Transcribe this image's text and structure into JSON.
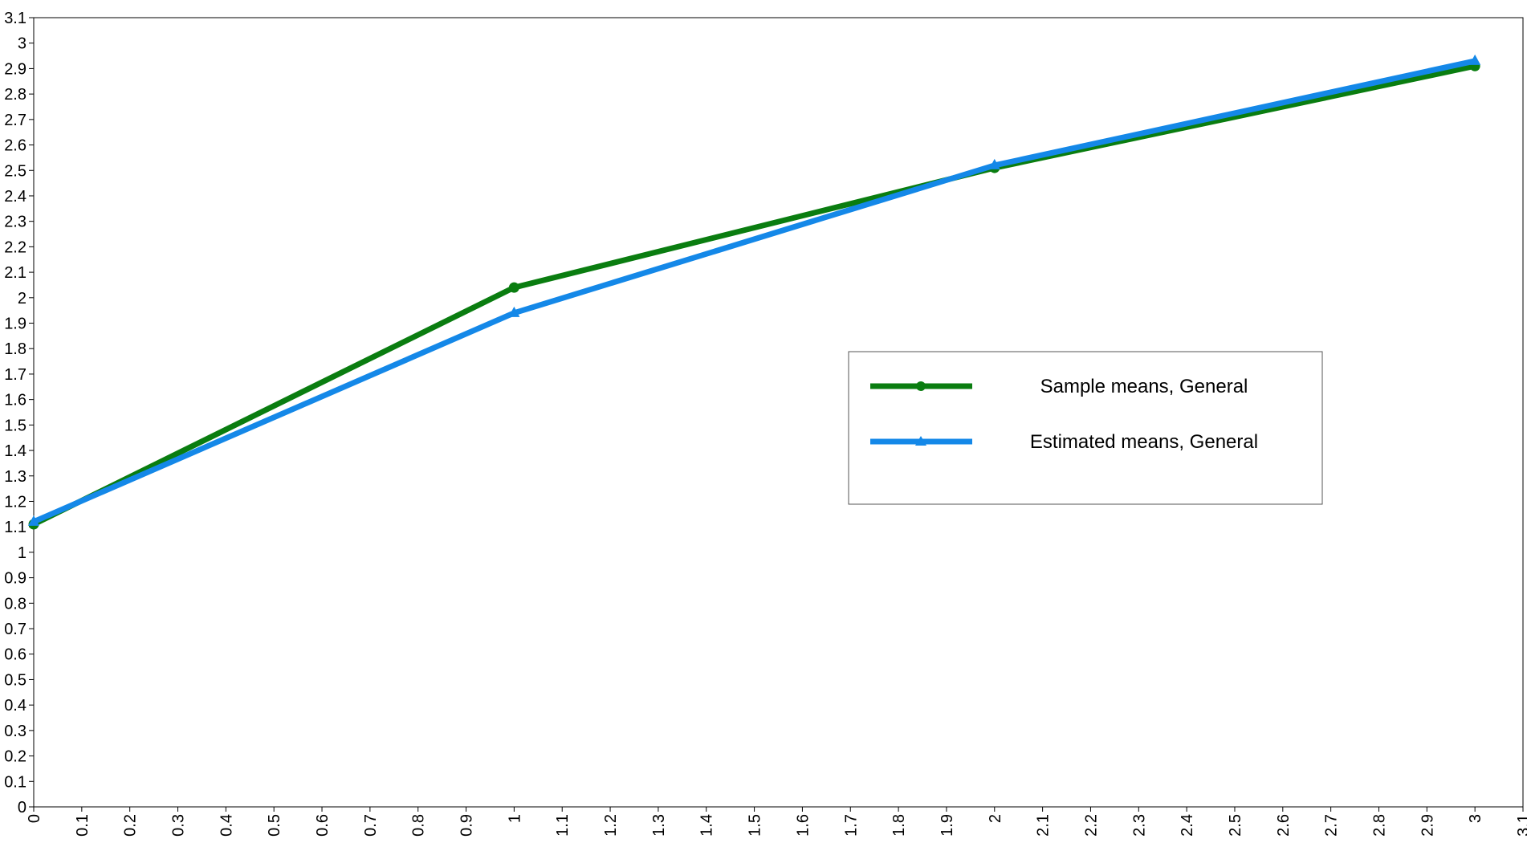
{
  "chart_data": {
    "type": "line",
    "title": "",
    "xlabel": "",
    "ylabel": "",
    "xlim": [
      0,
      3.1
    ],
    "ylim": [
      0,
      3.1
    ],
    "x_ticks": [
      "0",
      "0.1",
      "0.2",
      "0.3",
      "0.4",
      "0.5",
      "0.6",
      "0.7",
      "0.8",
      "0.9",
      "1",
      "1.1",
      "1.2",
      "1.3",
      "1.4",
      "1.5",
      "1.6",
      "1.7",
      "1.8",
      "1.9",
      "2",
      "2.1",
      "2.2",
      "2.3",
      "2.4",
      "2.5",
      "2.6",
      "2.7",
      "2.8",
      "2.9",
      "3",
      "3.1"
    ],
    "y_ticks": [
      "0",
      "0.1",
      "0.2",
      "0.3",
      "0.4",
      "0.5",
      "0.6",
      "0.7",
      "0.8",
      "0.9",
      "1",
      "1.1",
      "1.2",
      "1.3",
      "1.4",
      "1.5",
      "1.6",
      "1.7",
      "1.8",
      "1.9",
      "2",
      "2.1",
      "2.2",
      "2.3",
      "2.4",
      "2.5",
      "2.6",
      "2.7",
      "2.8",
      "2.9",
      "3",
      "3.1"
    ],
    "grid": false,
    "legend_position": "center-right",
    "series": [
      {
        "name": "Sample means, General",
        "color": "#0a7d10",
        "marker": "circle",
        "x": [
          0,
          1,
          2,
          3
        ],
        "y": [
          1.11,
          2.04,
          2.51,
          2.91
        ]
      },
      {
        "name": "Estimated means, General",
        "color": "#1488e8",
        "marker": "triangle",
        "x": [
          0,
          1,
          2,
          3
        ],
        "y": [
          1.12,
          1.94,
          2.52,
          2.93
        ]
      }
    ]
  }
}
